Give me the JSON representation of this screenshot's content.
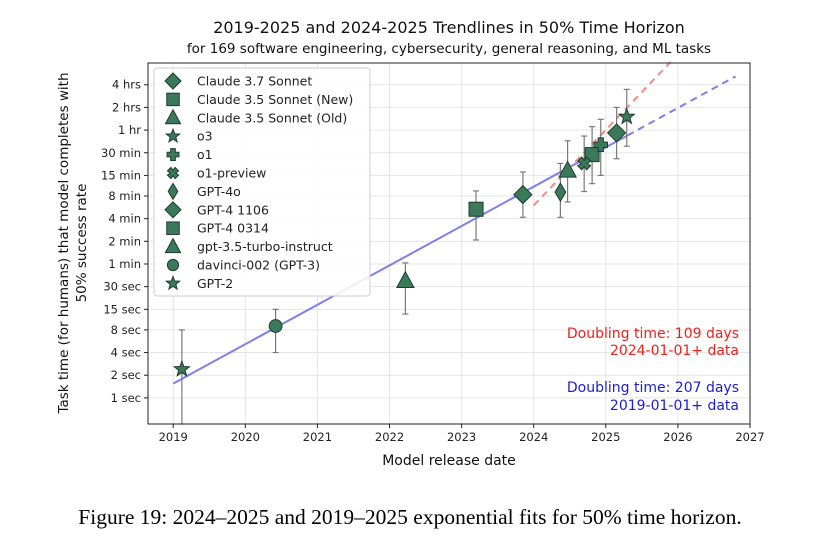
{
  "chart_data": {
    "type": "scatter",
    "title": "2019-2025 and 2024-2025 Trendlines in 50% Time Horizon",
    "subtitle": "for 169 software engineering, cybersecurity, general reasoning, and ML tasks",
    "xlabel": "Model release date",
    "ylabel": "Task time (for humans) that model completes with 50% success rate",
    "y_scale": "log",
    "xlim": [
      2018.65,
      2027.0
    ],
    "ylim_seconds": [
      0.45,
      28000
    ],
    "grid": true,
    "legend_placement": "top-left",
    "x_ticks": [
      {
        "value": 2019,
        "label": "2019"
      },
      {
        "value": 2020,
        "label": "2020"
      },
      {
        "value": 2021,
        "label": "2021"
      },
      {
        "value": 2022,
        "label": "2022"
      },
      {
        "value": 2023,
        "label": "2023"
      },
      {
        "value": 2024,
        "label": "2024"
      },
      {
        "value": 2025,
        "label": "2025"
      },
      {
        "value": 2026,
        "label": "2026"
      },
      {
        "value": 2027,
        "label": "2027"
      }
    ],
    "y_ticks": [
      {
        "value": 1,
        "label": "1 sec"
      },
      {
        "value": 2,
        "label": "2 sec"
      },
      {
        "value": 4,
        "label": "4 sec"
      },
      {
        "value": 8,
        "label": "8 sec"
      },
      {
        "value": 15,
        "label": "15 sec"
      },
      {
        "value": 30,
        "label": "30 sec"
      },
      {
        "value": 60,
        "label": "1 min"
      },
      {
        "value": 120,
        "label": "2 min"
      },
      {
        "value": 240,
        "label": "4 min"
      },
      {
        "value": 480,
        "label": "8 min"
      },
      {
        "value": 900,
        "label": "15 min"
      },
      {
        "value": 1800,
        "label": "30 min"
      },
      {
        "value": 3600,
        "label": "1 hr"
      },
      {
        "value": 7200,
        "label": "2 hrs"
      },
      {
        "value": 14400,
        "label": "4 hrs"
      }
    ],
    "series": [
      {
        "name": "Claude 3.7 Sonnet",
        "marker": "diamond",
        "x": 2025.15,
        "y": 3300,
        "y_low": 1500,
        "y_high": 7200
      },
      {
        "name": "Claude 3.5 Sonnet (New)",
        "marker": "square",
        "x": 2024.81,
        "y": 1700,
        "y_low": 700,
        "y_high": 4000
      },
      {
        "name": "Claude 3.5 Sonnet (Old)",
        "marker": "triangle",
        "x": 2024.47,
        "y": 1050,
        "y_low": 400,
        "y_high": 2600
      },
      {
        "name": "o3",
        "marker": "star",
        "x": 2025.29,
        "y": 5400,
        "y_low": 2200,
        "y_high": 12500
      },
      {
        "name": "o1",
        "marker": "plus",
        "x": 2024.93,
        "y": 2300,
        "y_low": 900,
        "y_high": 5000
      },
      {
        "name": "o1-preview",
        "marker": "x",
        "x": 2024.7,
        "y": 1300,
        "y_low": 550,
        "y_high": 3000
      },
      {
        "name": "GPT-4o",
        "marker": "thin-diamond",
        "x": 2024.37,
        "y": 540,
        "y_low": 250,
        "y_high": 1300
      },
      {
        "name": "GPT-4 1106",
        "marker": "diamond",
        "x": 2023.85,
        "y": 500,
        "y_low": 250,
        "y_high": 1000
      },
      {
        "name": "GPT-4 0314",
        "marker": "square",
        "x": 2023.2,
        "y": 320,
        "y_low": 125,
        "y_high": 560
      },
      {
        "name": "gpt-3.5-turbo-instruct",
        "marker": "triangle",
        "x": 2022.22,
        "y": 36,
        "y_low": 13,
        "y_high": 62
      },
      {
        "name": "davinci-002 (GPT-3)",
        "marker": "circle",
        "x": 2020.42,
        "y": 9,
        "y_low": 4,
        "y_high": 15
      },
      {
        "name": "GPT-2",
        "marker": "star",
        "x": 2019.12,
        "y": 2.4,
        "y_low": 0.45,
        "y_high": 8
      }
    ],
    "trendlines": [
      {
        "label": "2019-01-01+ data",
        "doubling_days": 207,
        "style": "solid-then-dashed",
        "color": "#7f7fee",
        "x_start": 2019.0,
        "x_end": 2026.8,
        "x_solid_end": 2025.3,
        "y_start": 1.55,
        "y_end": 18600
      },
      {
        "label": "2024-01-01+ data",
        "doubling_days": 109,
        "style": "dashed",
        "color": "#f08c82",
        "x_start": 2024.0,
        "x_end": 2025.9,
        "y_start": 360,
        "y_end": 29000
      }
    ],
    "annotations": [
      {
        "line1": "Doubling time: 109 days",
        "line2": "2024-01-01+ data",
        "color": "#e8231c"
      },
      {
        "line1": "Doubling time: 207 days",
        "line2": "2019-01-01+ data",
        "color": "#1d1ed0"
      }
    ]
  },
  "caption": "Figure 19: 2024–2025 and 2019–2025 exponential fits for 50% time horizon.",
  "colors": {
    "marker_fill": "#3a7a5a",
    "marker_edge": "#1e3b2c",
    "errorbar": "#7a7a7a",
    "grid": "#e5e5e5"
  }
}
